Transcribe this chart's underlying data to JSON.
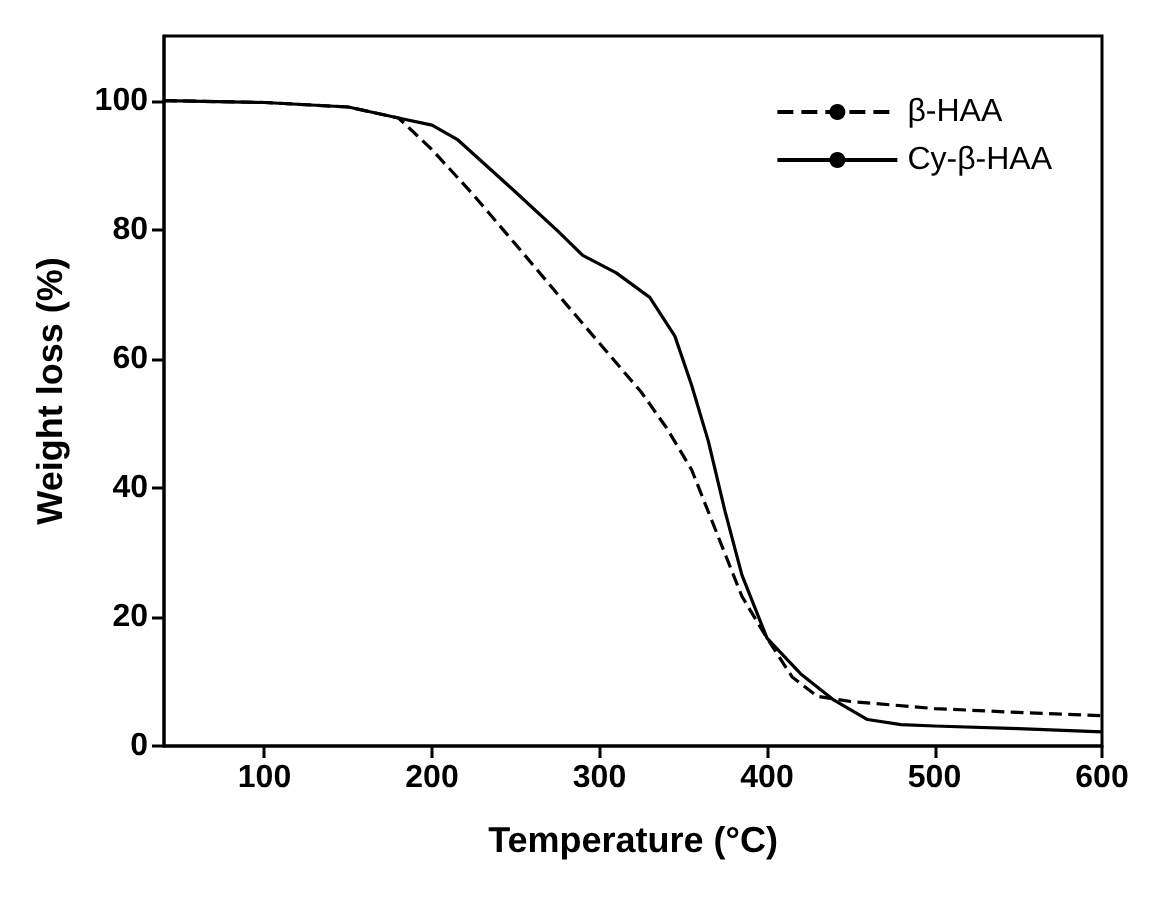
{
  "chart_data": {
    "type": "line",
    "xlabel": "Temperature (°C)",
    "ylabel": "Weight loss (%)",
    "xlim": [
      40,
      600
    ],
    "xticks": [
      100,
      200,
      300,
      400,
      500,
      600
    ],
    "ylim": [
      0,
      110
    ],
    "yticks": [
      0,
      20,
      40,
      60,
      80,
      100
    ],
    "grid": false,
    "legend": "top right",
    "marker": "none",
    "series": [
      {
        "name": "β-HAA",
        "color": "#000000",
        "line_style": "dashed",
        "x": [
          40,
          100,
          150,
          180,
          200,
          225,
          250,
          275,
          300,
          325,
          340,
          355,
          370,
          385,
          400,
          415,
          430,
          450,
          500,
          550,
          600
        ],
        "values": [
          100,
          99.7,
          99,
          97.3,
          92.4,
          85.3,
          77.7,
          70,
          62.4,
          54.8,
          49.3,
          42.8,
          33,
          23.2,
          16.7,
          10.7,
          7.7,
          6.9,
          5.8,
          5.2,
          4.7
        ]
      },
      {
        "name": "Cy-β-HAA",
        "color": "#000000",
        "line_style": "solid",
        "x": [
          40,
          100,
          150,
          180,
          200,
          215,
          250,
          275,
          290,
          310,
          330,
          345,
          355,
          365,
          375,
          385,
          400,
          420,
          440,
          460,
          480,
          500,
          550,
          600
        ],
        "values": [
          100,
          99.7,
          99,
          97.3,
          96.2,
          94,
          85.8,
          79.8,
          76,
          73.3,
          69.5,
          63.5,
          55.9,
          47.2,
          36.3,
          26.5,
          16.7,
          11.2,
          7.1,
          4.1,
          3.3,
          3.1,
          2.7,
          2.2
        ]
      }
    ]
  }
}
